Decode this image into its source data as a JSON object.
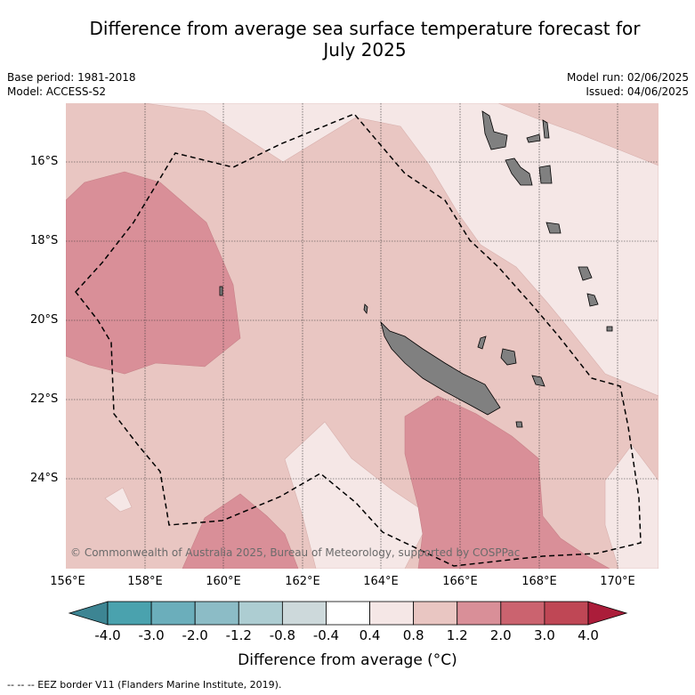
{
  "title_line1": "Difference from average sea surface temperature forecast for",
  "title_line2": "July 2025",
  "base_period": "Base period: 1981-2018",
  "model": "Model: ACCESS-S2",
  "model_run": "Model run: 02/06/2025",
  "issued": "Issued: 04/06/2025",
  "copyright": "© Commonwealth of Australia 2025, Bureau of Meteorology, supported by COSPPac",
  "x_ticks": [
    "156°E",
    "158°E",
    "160°E",
    "162°E",
    "164°E",
    "166°E",
    "168°E",
    "170°E"
  ],
  "y_ticks": [
    "16°S",
    "18°S",
    "20°S",
    "22°S",
    "24°S"
  ],
  "colorbar": {
    "labels": [
      "-4.0",
      "-3.0",
      "-2.0",
      "-1.2",
      "-0.8",
      "-0.4",
      "0.4",
      "0.8",
      "1.2",
      "2.0",
      "3.0",
      "4.0"
    ],
    "colors": [
      "#4aa2ae",
      "#6baebb",
      "#8cbcc6",
      "#adcdd2",
      "#cdd9db",
      "#ffffff",
      "#f5e7e6",
      "#e9c6c2",
      "#d98f98",
      "#cb636f",
      "#bf4755"
    ],
    "under_color": "#3d8593",
    "over_color": "#ab1d3a",
    "title": "Difference from average (°C)"
  },
  "colors": {
    "land": "#808080",
    "warm_0_4": "#f5e7e6",
    "warm_0_8": "#e9c6c2",
    "warm_1_2": "#d98f98"
  },
  "footer": "-- -- -- EEZ border V11 (Flanders Marine Institute, 2019)."
}
